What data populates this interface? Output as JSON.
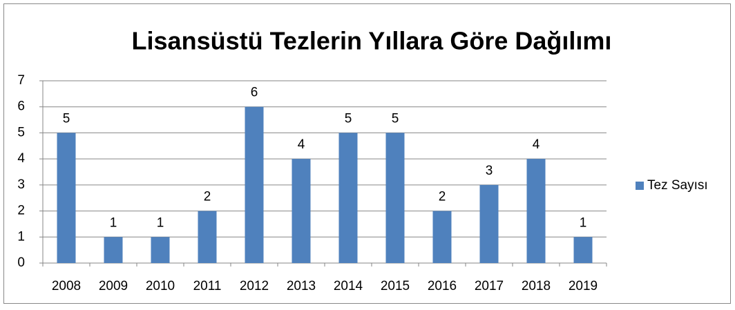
{
  "chart_data": {
    "type": "bar",
    "title": "Lisansüstü Tezlerin Yıllara Göre Dağılımı",
    "categories": [
      "2008",
      "2009",
      "2010",
      "2011",
      "2012",
      "2013",
      "2014",
      "2015",
      "2016",
      "2017",
      "2018",
      "2019"
    ],
    "series": [
      {
        "name": "Tez Sayısı",
        "color": "#4f81bd",
        "values": [
          5,
          1,
          1,
          2,
          6,
          4,
          5,
          5,
          2,
          3,
          4,
          1
        ]
      }
    ],
    "ylim": [
      0,
      7
    ],
    "yticks": [
      0,
      1,
      2,
      3,
      4,
      5,
      6,
      7
    ],
    "grid": true,
    "legend": "right"
  }
}
